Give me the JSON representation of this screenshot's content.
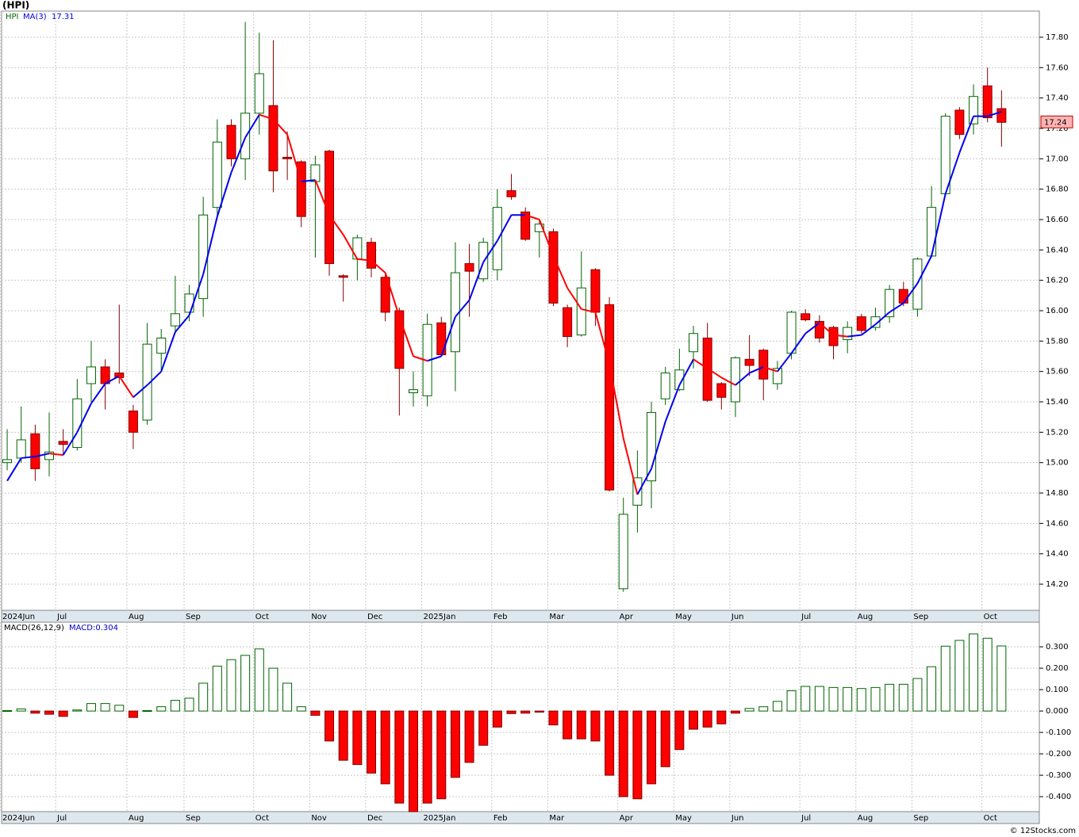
{
  "title": "(HPI)",
  "footer": "© 12Stocks.com",
  "chart_data": [
    {
      "type": "candlestick",
      "name": "HPI",
      "up_color": "#006400",
      "down_color": "#ff0000",
      "open": [
        15.0,
        15.03,
        15.19,
        15.02,
        15.14,
        15.1,
        15.52,
        15.63,
        15.59,
        15.34,
        15.28,
        15.72,
        15.9,
        15.99,
        16.08,
        16.68,
        17.22,
        17.0,
        17.3,
        17.35,
        17.01,
        16.98,
        16.85,
        17.05,
        16.23,
        16.34,
        16.45,
        16.22,
        16.0,
        15.46,
        15.44,
        15.92,
        15.73,
        16.31,
        16.21,
        16.27,
        16.79,
        16.65,
        16.52,
        16.52,
        16.02,
        15.84,
        16.27,
        16.04,
        14.17,
        14.72,
        14.88,
        15.42,
        15.48,
        15.73,
        15.82,
        15.52,
        15.4,
        15.68,
        15.74,
        15.52,
        15.72,
        15.98,
        15.93,
        15.89,
        15.81,
        15.96,
        15.89,
        15.96,
        16.14,
        16.01,
        16.36,
        16.77,
        17.32,
        17.23,
        17.48,
        17.33
      ],
      "high": [
        15.22,
        15.37,
        15.25,
        15.33,
        15.22,
        15.55,
        15.8,
        15.68,
        16.04,
        15.38,
        15.92,
        15.88,
        16.23,
        16.17,
        16.75,
        17.26,
        17.26,
        17.9,
        17.83,
        17.78,
        17.18,
        16.99,
        17.02,
        17.06,
        16.24,
        16.5,
        16.48,
        16.25,
        16.02,
        15.6,
        15.98,
        15.96,
        16.45,
        16.44,
        16.48,
        16.8,
        16.9,
        16.68,
        16.6,
        16.54,
        16.04,
        16.39,
        16.28,
        16.09,
        14.77,
        15.08,
        15.4,
        15.63,
        15.75,
        15.9,
        15.92,
        15.53,
        15.7,
        15.84,
        15.75,
        15.67,
        16.0,
        16.01,
        15.97,
        15.9,
        15.93,
        15.98,
        16.02,
        16.17,
        16.19,
        16.35,
        16.82,
        17.3,
        17.34,
        17.49,
        17.6,
        17.45
      ],
      "low": [
        14.95,
        15.0,
        14.88,
        14.91,
        15.05,
        15.08,
        15.4,
        15.35,
        15.52,
        15.09,
        15.25,
        15.6,
        15.85,
        15.93,
        15.96,
        16.62,
        16.95,
        16.86,
        17.16,
        16.78,
        16.86,
        16.55,
        16.35,
        16.23,
        16.06,
        16.2,
        16.22,
        15.93,
        15.31,
        15.37,
        15.37,
        15.7,
        15.47,
        15.96,
        16.19,
        16.2,
        16.73,
        16.46,
        16.35,
        16.03,
        15.76,
        15.83,
        15.9,
        14.81,
        14.15,
        14.54,
        14.7,
        15.38,
        15.47,
        15.62,
        15.4,
        15.35,
        15.3,
        15.57,
        15.41,
        15.48,
        15.68,
        15.93,
        15.79,
        15.68,
        15.72,
        15.85,
        15.87,
        15.92,
        16.03,
        15.96,
        16.35,
        16.76,
        17.13,
        17.16,
        17.24,
        17.08
      ],
      "close": [
        15.02,
        15.15,
        14.96,
        15.07,
        15.12,
        15.42,
        15.63,
        15.52,
        15.56,
        15.2,
        15.78,
        15.82,
        15.98,
        16.11,
        16.63,
        17.11,
        17.0,
        17.3,
        17.56,
        16.92,
        17.0,
        16.62,
        16.96,
        16.31,
        16.22,
        16.48,
        16.28,
        15.99,
        15.62,
        15.48,
        15.91,
        15.71,
        16.25,
        16.26,
        16.45,
        16.68,
        16.75,
        16.47,
        16.57,
        16.05,
        15.83,
        16.15,
        15.99,
        14.82,
        14.66,
        14.9,
        15.33,
        15.59,
        15.61,
        15.85,
        15.41,
        15.43,
        15.69,
        15.64,
        15.55,
        15.62,
        15.99,
        15.94,
        15.82,
        15.77,
        15.89,
        15.87,
        15.96,
        16.14,
        16.05,
        16.34,
        16.68,
        17.28,
        17.16,
        17.41,
        17.27,
        17.24
      ],
      "ma": {
        "name": "MA(3)",
        "up_color": "#0000ee",
        "down_color": "#ff0000",
        "values": [
          14.88,
          15.03,
          15.04,
          15.06,
          15.05,
          15.2,
          15.39,
          15.52,
          15.57,
          15.43,
          15.51,
          15.6,
          15.86,
          15.97,
          16.24,
          16.62,
          16.91,
          17.14,
          17.29,
          17.26,
          17.16,
          16.85,
          16.86,
          16.63,
          16.5,
          16.34,
          16.33,
          16.25,
          15.96,
          15.7,
          15.67,
          15.7,
          15.96,
          16.07,
          16.32,
          16.46,
          16.63,
          16.63,
          16.6,
          16.36,
          16.15,
          16.01,
          15.99,
          15.65,
          15.16,
          14.79,
          14.96,
          15.27,
          15.51,
          15.68,
          15.62,
          15.56,
          15.51,
          15.59,
          15.63,
          15.6,
          15.72,
          15.85,
          15.92,
          15.84,
          15.83,
          15.84,
          15.91,
          15.99,
          16.05,
          16.18,
          16.36,
          16.77,
          17.04,
          17.28,
          17.28,
          17.31
        ]
      },
      "xlim": [
        -0.4,
        73.7
      ],
      "ylim": [
        14.028,
        17.972
      ],
      "yticks": [
        {
          "value": 14.2,
          "label": "14.20"
        },
        {
          "value": 14.4,
          "label": "14.40"
        },
        {
          "value": 14.6,
          "label": "14.60"
        },
        {
          "value": 14.8,
          "label": "14.80"
        },
        {
          "value": 15.0,
          "label": "15.00"
        },
        {
          "value": 15.2,
          "label": "15.20"
        },
        {
          "value": 15.4,
          "label": "15.40"
        },
        {
          "value": 15.6,
          "label": "15.60"
        },
        {
          "value": 15.8,
          "label": "15.80"
        },
        {
          "value": 16.0,
          "label": "16.00"
        },
        {
          "value": 16.2,
          "label": "16.20"
        },
        {
          "value": 16.4,
          "label": "16.40"
        },
        {
          "value": 16.6,
          "label": "16.60"
        },
        {
          "value": 16.8,
          "label": "16.80"
        },
        {
          "value": 17.0,
          "label": "17.00"
        },
        {
          "value": 17.2,
          "label": "17.20"
        },
        {
          "value": 17.4,
          "label": "17.40"
        },
        {
          "value": 17.6,
          "label": "17.60"
        },
        {
          "value": 17.8,
          "label": "17.80"
        }
      ],
      "xticks": [
        {
          "value": -0.5,
          "label": "2024Jun"
        },
        {
          "value": 3.46,
          "label": "Jul"
        },
        {
          "value": 8.55,
          "label": "Aug"
        },
        {
          "value": 12.63,
          "label": "Sep"
        },
        {
          "value": 17.6,
          "label": "Oct"
        },
        {
          "value": 21.6,
          "label": "Nov"
        },
        {
          "value": 25.6,
          "label": "Dec"
        },
        {
          "value": 29.6,
          "label": "2025Jan"
        },
        {
          "value": 34.6,
          "label": "Feb"
        },
        {
          "value": 38.6,
          "label": "Mar"
        },
        {
          "value": 43.6,
          "label": "Apr"
        },
        {
          "value": 47.6,
          "label": "May"
        },
        {
          "value": 51.6,
          "label": "Jun"
        },
        {
          "value": 56.6,
          "label": "Jul"
        },
        {
          "value": 60.6,
          "label": "Aug"
        },
        {
          "value": 64.6,
          "label": "Sep"
        },
        {
          "value": 69.6,
          "label": "Oct"
        }
      ],
      "grid": true
    },
    {
      "type": "bar",
      "name": "MACD(26,12,9)",
      "legend_value_label": "MACD:0.304",
      "up_color": "#006400",
      "down_color": "#ff0000",
      "values": [
        0.002,
        0.01,
        -0.01,
        -0.015,
        -0.025,
        0.005,
        0.035,
        0.035,
        0.027,
        -0.03,
        0.002,
        0.02,
        0.05,
        0.06,
        0.13,
        0.21,
        0.24,
        0.26,
        0.29,
        0.2,
        0.13,
        0.02,
        -0.02,
        -0.14,
        -0.23,
        -0.25,
        -0.29,
        -0.34,
        -0.43,
        -0.47,
        -0.43,
        -0.41,
        -0.31,
        -0.24,
        -0.16,
        -0.075,
        -0.012,
        -0.01,
        -0.005,
        -0.065,
        -0.13,
        -0.13,
        -0.14,
        -0.3,
        -0.4,
        -0.41,
        -0.34,
        -0.26,
        -0.18,
        -0.085,
        -0.075,
        -0.06,
        -0.01,
        0.012,
        0.02,
        0.045,
        0.095,
        0.115,
        0.115,
        0.11,
        0.11,
        0.105,
        0.11,
        0.125,
        0.125,
        0.152,
        0.207,
        0.303,
        0.33,
        0.36,
        0.34,
        0.304
      ],
      "xlim": [
        -0.4,
        73.7
      ],
      "ylim": [
        -0.47,
        0.415
      ],
      "yticks": [
        {
          "value": -0.4,
          "label": "-0.400"
        },
        {
          "value": -0.3,
          "label": "-0.300"
        },
        {
          "value": -0.2,
          "label": "-0.200"
        },
        {
          "value": -0.1,
          "label": "-0.100"
        },
        {
          "value": 0,
          "label": "0.000"
        },
        {
          "value": 0.1,
          "label": "0.100"
        },
        {
          "value": 0.2,
          "label": "0.200"
        },
        {
          "value": 0.3,
          "label": "0.300"
        }
      ],
      "xticks": [
        {
          "value": -0.5,
          "label": "2024Jun"
        },
        {
          "value": 3.46,
          "label": "Jul"
        },
        {
          "value": 8.55,
          "label": "Aug"
        },
        {
          "value": 12.63,
          "label": "Sep"
        },
        {
          "value": 17.6,
          "label": "Oct"
        },
        {
          "value": 21.6,
          "label": "Nov"
        },
        {
          "value": 25.6,
          "label": "Dec"
        },
        {
          "value": 29.6,
          "label": "2025Jan"
        },
        {
          "value": 34.6,
          "label": "Feb"
        },
        {
          "value": 38.6,
          "label": "Mar"
        },
        {
          "value": 43.6,
          "label": "Apr"
        },
        {
          "value": 47.6,
          "label": "May"
        },
        {
          "value": 51.6,
          "label": "Jun"
        },
        {
          "value": 56.6,
          "label": "Jul"
        },
        {
          "value": 60.6,
          "label": "Aug"
        },
        {
          "value": 64.6,
          "label": "Sep"
        },
        {
          "value": 69.6,
          "label": "Oct"
        }
      ],
      "grid": true
    }
  ]
}
